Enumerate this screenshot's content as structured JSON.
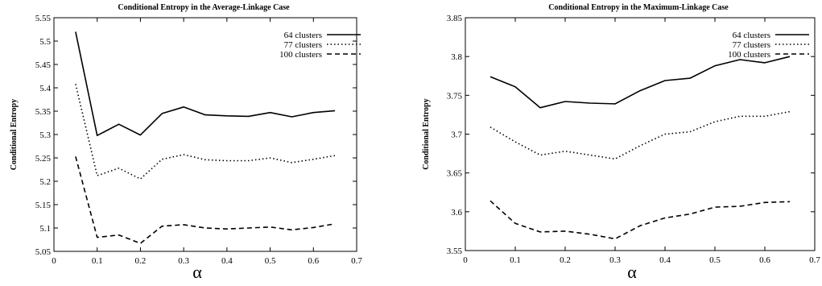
{
  "chart_data": [
    {
      "type": "line",
      "title": "Conditional Entropy in the Average-Linkage Case",
      "xlabel": "α",
      "ylabel": "Conditional Entropy",
      "xlim": [
        0,
        0.7
      ],
      "ylim": [
        5.05,
        5.55
      ],
      "xticks": [
        0,
        0.1,
        0.2,
        0.3,
        0.4,
        0.5,
        0.6,
        0.7
      ],
      "xtick_labels": [
        "0",
        "0.1",
        "0.2",
        "0.3",
        "0.4",
        "0.5",
        "0.6",
        "0.7"
      ],
      "yticks": [
        5.05,
        5.1,
        5.15,
        5.2,
        5.25,
        5.3,
        5.35,
        5.4,
        5.45,
        5.5,
        5.55
      ],
      "ytick_labels": [
        "5.05",
        "5.1",
        "5.15",
        "5.2",
        "5.25",
        "5.3",
        "5.35",
        "5.4",
        "5.45",
        "5.5",
        "5.55"
      ],
      "x": [
        0.05,
        0.1,
        0.15,
        0.2,
        0.25,
        0.3,
        0.35,
        0.4,
        0.45,
        0.5,
        0.55,
        0.6,
        0.65
      ],
      "legend_position": "top-right",
      "series": [
        {
          "name": "64 clusters",
          "style": "solid",
          "values": [
            5.52,
            5.298,
            5.322,
            5.299,
            5.345,
            5.359,
            5.342,
            5.34,
            5.339,
            5.347,
            5.338,
            5.347,
            5.351
          ]
        },
        {
          "name": "77 clusters",
          "style": "dotted",
          "values": [
            5.408,
            5.212,
            5.228,
            5.205,
            5.247,
            5.257,
            5.246,
            5.244,
            5.244,
            5.25,
            5.24,
            5.247,
            5.255
          ]
        },
        {
          "name": "100 clusters",
          "style": "dashed",
          "values": [
            5.253,
            5.08,
            5.085,
            5.067,
            5.104,
            5.107,
            5.1,
            5.098,
            5.1,
            5.102,
            5.096,
            5.101,
            5.109
          ]
        }
      ]
    },
    {
      "type": "line",
      "title": "Conditional Entropy in the Maximum-Linkage Case",
      "xlabel": "α",
      "ylabel": "Conditional Entropy",
      "xlim": [
        0,
        0.7
      ],
      "ylim": [
        3.55,
        3.85
      ],
      "xticks": [
        0,
        0.1,
        0.2,
        0.3,
        0.4,
        0.5,
        0.6,
        0.7
      ],
      "xtick_labels": [
        "0",
        "0.1",
        "0.2",
        "0.3",
        "0.4",
        "0.5",
        "0.6",
        "0.7"
      ],
      "yticks": [
        3.55,
        3.6,
        3.65,
        3.7,
        3.75,
        3.8,
        3.85
      ],
      "ytick_labels": [
        "3.55",
        "3.6",
        "3.65",
        "3.7",
        "3.75",
        "3.8",
        "3.85"
      ],
      "x": [
        0.05,
        0.1,
        0.15,
        0.2,
        0.25,
        0.3,
        0.35,
        0.4,
        0.45,
        0.5,
        0.55,
        0.6,
        0.65
      ],
      "legend_position": "top-right",
      "series": [
        {
          "name": "64 clusters",
          "style": "solid",
          "values": [
            3.774,
            3.761,
            3.734,
            3.742,
            3.74,
            3.739,
            3.756,
            3.769,
            3.772,
            3.788,
            3.796,
            3.792,
            3.8
          ]
        },
        {
          "name": "77 clusters",
          "style": "dotted",
          "values": [
            3.709,
            3.69,
            3.673,
            3.678,
            3.673,
            3.668,
            3.685,
            3.7,
            3.703,
            3.716,
            3.723,
            3.723,
            3.729
          ]
        },
        {
          "name": "100 clusters",
          "style": "dashed",
          "values": [
            3.614,
            3.585,
            3.574,
            3.575,
            3.571,
            3.565,
            3.582,
            3.592,
            3.597,
            3.606,
            3.607,
            3.612,
            3.613
          ]
        }
      ]
    }
  ]
}
